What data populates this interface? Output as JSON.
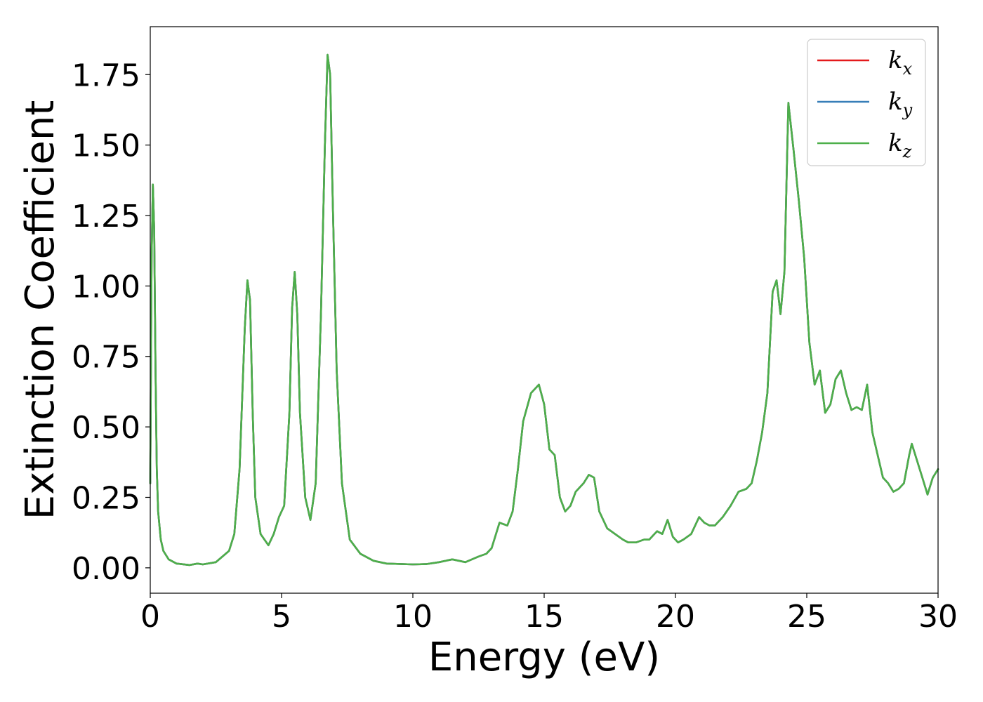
{
  "chart_data": {
    "type": "line",
    "xlabel": "Energy (eV)",
    "ylabel": "Extinction Coefficient",
    "xlim": [
      0,
      30
    ],
    "ylim": [
      -0.09,
      1.92
    ],
    "xticks": [
      0,
      5,
      10,
      15,
      20,
      25,
      30
    ],
    "xtick_labels": [
      "0",
      "5",
      "10",
      "15",
      "20",
      "25",
      "30"
    ],
    "yticks": [
      0.0,
      0.25,
      0.5,
      0.75,
      1.0,
      1.25,
      1.5,
      1.75
    ],
    "ytick_labels": [
      "0.00",
      "0.25",
      "0.50",
      "0.75",
      "1.00",
      "1.25",
      "1.50",
      "1.75"
    ],
    "grid": false,
    "legend_position": "top-right",
    "series": [
      {
        "name": "k_x",
        "label_base": "k",
        "label_sub": "x",
        "color": "#e41a1c",
        "x": [
          0,
          0.05,
          0.1,
          0.15,
          0.2,
          0.25,
          0.3,
          0.4,
          0.5,
          0.7,
          1.0,
          1.5,
          1.8,
          2.0,
          2.5,
          3.0,
          3.2,
          3.4,
          3.6,
          3.7,
          3.8,
          3.9,
          4.0,
          4.2,
          4.5,
          4.7,
          4.9,
          5.1,
          5.3,
          5.4,
          5.5,
          5.6,
          5.7,
          5.9,
          6.1,
          6.3,
          6.5,
          6.65,
          6.75,
          6.85,
          6.95,
          7.1,
          7.3,
          7.6,
          8.0,
          8.5,
          9.0,
          10.0,
          10.5,
          11.0,
          11.5,
          12.0,
          12.5,
          12.8,
          13.0,
          13.3,
          13.6,
          13.8,
          14.0,
          14.2,
          14.5,
          14.8,
          15.0,
          15.2,
          15.4,
          15.6,
          15.8,
          16.0,
          16.2,
          16.5,
          16.7,
          16.9,
          17.1,
          17.4,
          17.7,
          18.0,
          18.2,
          18.5,
          18.8,
          19.0,
          19.3,
          19.5,
          19.7,
          19.9,
          20.1,
          20.3,
          20.6,
          20.9,
          21.1,
          21.3,
          21.5,
          21.8,
          22.1,
          22.4,
          22.7,
          22.9,
          23.1,
          23.3,
          23.5,
          23.7,
          23.85,
          24.0,
          24.15,
          24.3,
          24.5,
          24.7,
          24.9,
          25.1,
          25.3,
          25.5,
          25.7,
          25.9,
          26.1,
          26.3,
          26.5,
          26.7,
          26.9,
          27.1,
          27.3,
          27.5,
          27.7,
          27.9,
          28.1,
          28.3,
          28.5,
          28.7,
          28.9,
          29.0,
          29.2,
          29.4,
          29.6,
          29.8,
          30.0
        ],
        "y": [
          0.3,
          1.1,
          1.36,
          1.2,
          0.7,
          0.35,
          0.2,
          0.1,
          0.06,
          0.03,
          0.015,
          0.01,
          0.015,
          0.012,
          0.02,
          0.06,
          0.12,
          0.35,
          0.85,
          1.02,
          0.95,
          0.55,
          0.25,
          0.12,
          0.08,
          0.12,
          0.18,
          0.22,
          0.55,
          0.92,
          1.05,
          0.9,
          0.55,
          0.25,
          0.17,
          0.3,
          0.9,
          1.5,
          1.82,
          1.75,
          1.3,
          0.7,
          0.3,
          0.1,
          0.05,
          0.025,
          0.015,
          0.012,
          0.013,
          0.02,
          0.03,
          0.02,
          0.04,
          0.05,
          0.07,
          0.16,
          0.15,
          0.2,
          0.35,
          0.52,
          0.62,
          0.65,
          0.58,
          0.42,
          0.4,
          0.25,
          0.2,
          0.22,
          0.27,
          0.3,
          0.33,
          0.32,
          0.2,
          0.14,
          0.12,
          0.1,
          0.09,
          0.09,
          0.1,
          0.1,
          0.13,
          0.12,
          0.17,
          0.11,
          0.09,
          0.1,
          0.12,
          0.18,
          0.16,
          0.15,
          0.15,
          0.18,
          0.22,
          0.27,
          0.28,
          0.3,
          0.38,
          0.48,
          0.62,
          0.98,
          1.02,
          0.9,
          1.05,
          1.65,
          1.48,
          1.3,
          1.1,
          0.8,
          0.65,
          0.7,
          0.55,
          0.58,
          0.67,
          0.7,
          0.62,
          0.56,
          0.57,
          0.56,
          0.65,
          0.48,
          0.4,
          0.32,
          0.3,
          0.27,
          0.28,
          0.3,
          0.4,
          0.44,
          0.38,
          0.32,
          0.26,
          0.32,
          0.35
        ]
      },
      {
        "name": "k_y",
        "label_base": "k",
        "label_sub": "y",
        "color": "#377eb8",
        "x": [
          0,
          0.05,
          0.1,
          0.15,
          0.2,
          0.25,
          0.3,
          0.4,
          0.5,
          0.7,
          1.0,
          1.5,
          1.8,
          2.0,
          2.5,
          3.0,
          3.2,
          3.4,
          3.6,
          3.7,
          3.8,
          3.9,
          4.0,
          4.2,
          4.5,
          4.7,
          4.9,
          5.1,
          5.3,
          5.4,
          5.5,
          5.6,
          5.7,
          5.9,
          6.1,
          6.3,
          6.5,
          6.65,
          6.75,
          6.85,
          6.95,
          7.1,
          7.3,
          7.6,
          8.0,
          8.5,
          9.0,
          10.0,
          10.5,
          11.0,
          11.5,
          12.0,
          12.5,
          12.8,
          13.0,
          13.3,
          13.6,
          13.8,
          14.0,
          14.2,
          14.5,
          14.8,
          15.0,
          15.2,
          15.4,
          15.6,
          15.8,
          16.0,
          16.2,
          16.5,
          16.7,
          16.9,
          17.1,
          17.4,
          17.7,
          18.0,
          18.2,
          18.5,
          18.8,
          19.0,
          19.3,
          19.5,
          19.7,
          19.9,
          20.1,
          20.3,
          20.6,
          20.9,
          21.1,
          21.3,
          21.5,
          21.8,
          22.1,
          22.4,
          22.7,
          22.9,
          23.1,
          23.3,
          23.5,
          23.7,
          23.85,
          24.0,
          24.15,
          24.3,
          24.5,
          24.7,
          24.9,
          25.1,
          25.3,
          25.5,
          25.7,
          25.9,
          26.1,
          26.3,
          26.5,
          26.7,
          26.9,
          27.1,
          27.3,
          27.5,
          27.7,
          27.9,
          28.1,
          28.3,
          28.5,
          28.7,
          28.9,
          29.0,
          29.2,
          29.4,
          29.6,
          29.8,
          30.0
        ],
        "y": [
          0.3,
          1.1,
          1.36,
          1.2,
          0.7,
          0.35,
          0.2,
          0.1,
          0.06,
          0.03,
          0.015,
          0.01,
          0.015,
          0.012,
          0.02,
          0.06,
          0.12,
          0.35,
          0.85,
          1.02,
          0.95,
          0.55,
          0.25,
          0.12,
          0.08,
          0.12,
          0.18,
          0.22,
          0.55,
          0.92,
          1.05,
          0.9,
          0.55,
          0.25,
          0.17,
          0.3,
          0.9,
          1.5,
          1.82,
          1.75,
          1.3,
          0.7,
          0.3,
          0.1,
          0.05,
          0.025,
          0.015,
          0.012,
          0.013,
          0.02,
          0.03,
          0.02,
          0.04,
          0.05,
          0.07,
          0.16,
          0.15,
          0.2,
          0.35,
          0.52,
          0.62,
          0.65,
          0.58,
          0.42,
          0.4,
          0.25,
          0.2,
          0.22,
          0.27,
          0.3,
          0.33,
          0.32,
          0.2,
          0.14,
          0.12,
          0.1,
          0.09,
          0.09,
          0.1,
          0.1,
          0.13,
          0.12,
          0.17,
          0.11,
          0.09,
          0.1,
          0.12,
          0.18,
          0.16,
          0.15,
          0.15,
          0.18,
          0.22,
          0.27,
          0.28,
          0.3,
          0.38,
          0.48,
          0.62,
          0.98,
          1.02,
          0.9,
          1.05,
          1.65,
          1.48,
          1.3,
          1.1,
          0.8,
          0.65,
          0.7,
          0.55,
          0.58,
          0.67,
          0.7,
          0.62,
          0.56,
          0.57,
          0.56,
          0.65,
          0.48,
          0.4,
          0.32,
          0.3,
          0.27,
          0.28,
          0.3,
          0.4,
          0.44,
          0.38,
          0.32,
          0.26,
          0.32,
          0.35
        ]
      },
      {
        "name": "k_z",
        "label_base": "k",
        "label_sub": "z",
        "color": "#4daf4a",
        "x": [
          0,
          0.05,
          0.1,
          0.15,
          0.2,
          0.25,
          0.3,
          0.4,
          0.5,
          0.7,
          1.0,
          1.5,
          1.8,
          2.0,
          2.5,
          3.0,
          3.2,
          3.4,
          3.6,
          3.7,
          3.8,
          3.9,
          4.0,
          4.2,
          4.5,
          4.7,
          4.9,
          5.1,
          5.3,
          5.4,
          5.5,
          5.6,
          5.7,
          5.9,
          6.1,
          6.3,
          6.5,
          6.65,
          6.75,
          6.85,
          6.95,
          7.1,
          7.3,
          7.6,
          8.0,
          8.5,
          9.0,
          10.0,
          10.5,
          11.0,
          11.5,
          12.0,
          12.5,
          12.8,
          13.0,
          13.3,
          13.6,
          13.8,
          14.0,
          14.2,
          14.5,
          14.8,
          15.0,
          15.2,
          15.4,
          15.6,
          15.8,
          16.0,
          16.2,
          16.5,
          16.7,
          16.9,
          17.1,
          17.4,
          17.7,
          18.0,
          18.2,
          18.5,
          18.8,
          19.0,
          19.3,
          19.5,
          19.7,
          19.9,
          20.1,
          20.3,
          20.6,
          20.9,
          21.1,
          21.3,
          21.5,
          21.8,
          22.1,
          22.4,
          22.7,
          22.9,
          23.1,
          23.3,
          23.5,
          23.7,
          23.85,
          24.0,
          24.15,
          24.3,
          24.5,
          24.7,
          24.9,
          25.1,
          25.3,
          25.5,
          25.7,
          25.9,
          26.1,
          26.3,
          26.5,
          26.7,
          26.9,
          27.1,
          27.3,
          27.5,
          27.7,
          27.9,
          28.1,
          28.3,
          28.5,
          28.7,
          28.9,
          29.0,
          29.2,
          29.4,
          29.6,
          29.8,
          30.0
        ],
        "y": [
          0.3,
          1.1,
          1.36,
          1.2,
          0.7,
          0.35,
          0.2,
          0.1,
          0.06,
          0.03,
          0.015,
          0.01,
          0.015,
          0.012,
          0.02,
          0.06,
          0.12,
          0.35,
          0.85,
          1.02,
          0.95,
          0.55,
          0.25,
          0.12,
          0.08,
          0.12,
          0.18,
          0.22,
          0.55,
          0.92,
          1.05,
          0.9,
          0.55,
          0.25,
          0.17,
          0.3,
          0.9,
          1.5,
          1.82,
          1.75,
          1.3,
          0.7,
          0.3,
          0.1,
          0.05,
          0.025,
          0.015,
          0.012,
          0.013,
          0.02,
          0.03,
          0.02,
          0.04,
          0.05,
          0.07,
          0.16,
          0.15,
          0.2,
          0.35,
          0.52,
          0.62,
          0.65,
          0.58,
          0.42,
          0.4,
          0.25,
          0.2,
          0.22,
          0.27,
          0.3,
          0.33,
          0.32,
          0.2,
          0.14,
          0.12,
          0.1,
          0.09,
          0.09,
          0.1,
          0.1,
          0.13,
          0.12,
          0.17,
          0.11,
          0.09,
          0.1,
          0.12,
          0.18,
          0.16,
          0.15,
          0.15,
          0.18,
          0.22,
          0.27,
          0.28,
          0.3,
          0.38,
          0.48,
          0.62,
          0.98,
          1.02,
          0.9,
          1.05,
          1.65,
          1.48,
          1.3,
          1.1,
          0.8,
          0.65,
          0.7,
          0.55,
          0.58,
          0.67,
          0.7,
          0.62,
          0.56,
          0.57,
          0.56,
          0.65,
          0.48,
          0.4,
          0.32,
          0.3,
          0.27,
          0.28,
          0.3,
          0.4,
          0.44,
          0.38,
          0.32,
          0.26,
          0.32,
          0.35
        ]
      }
    ]
  }
}
